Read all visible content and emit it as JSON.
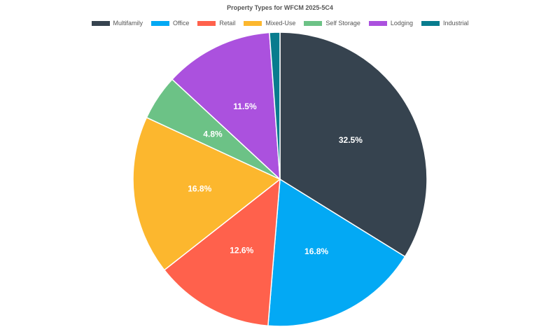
{
  "chart_data": {
    "type": "pie",
    "title": "Property Types for WFCM 2025-5C4",
    "legend_position": "top",
    "slices": [
      {
        "name": "Multifamily",
        "value": 32.5,
        "label": "32.5%",
        "color": "#36434f"
      },
      {
        "name": "Office",
        "value": 16.8,
        "label": "16.8%",
        "color": "#03a9f4"
      },
      {
        "name": "Retail",
        "value": 12.6,
        "label": "12.6%",
        "color": "#ff614c"
      },
      {
        "name": "Mixed-Use",
        "value": 16.8,
        "label": "16.8%",
        "color": "#fcb72e"
      },
      {
        "name": "Self Storage",
        "value": 4.8,
        "label": "4.8%",
        "color": "#6cc286"
      },
      {
        "name": "Lodging",
        "value": 11.5,
        "label": "11.5%",
        "color": "#ab51de"
      },
      {
        "name": "Industrial",
        "value": 1.1,
        "label": "",
        "color": "#087c8e"
      }
    ]
  }
}
